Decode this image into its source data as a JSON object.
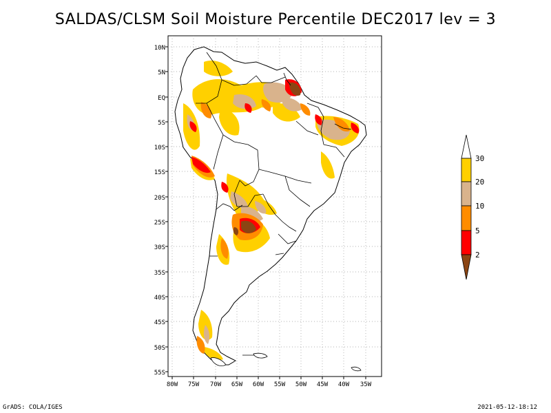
{
  "title": "SALDAS/CLSM Soil Moisture Percentile DEC2017 lev = 3",
  "map": {
    "lat_labels": [
      "10N",
      "5N",
      "EQ",
      "5S",
      "10S",
      "15S",
      "20S",
      "25S",
      "30S",
      "35S",
      "40S",
      "45S",
      "50S",
      "55S"
    ],
    "lon_labels": [
      "80W",
      "75W",
      "70W",
      "65W",
      "60W",
      "55W",
      "50W",
      "45W",
      "40W",
      "35W"
    ]
  },
  "legend": {
    "labels": [
      "30",
      "20",
      "10",
      "5",
      "2"
    ],
    "colors": {
      "above30": "#ffffff",
      "20to30": "#ffd000",
      "10to20": "#d9b38c",
      "5to10": "#ff8c00",
      "2to5": "#ff0000",
      "below2": "#8b4513"
    }
  },
  "footer": {
    "left": "GrADS: COLA/IGES",
    "right": "2021-05-12-18:12"
  }
}
